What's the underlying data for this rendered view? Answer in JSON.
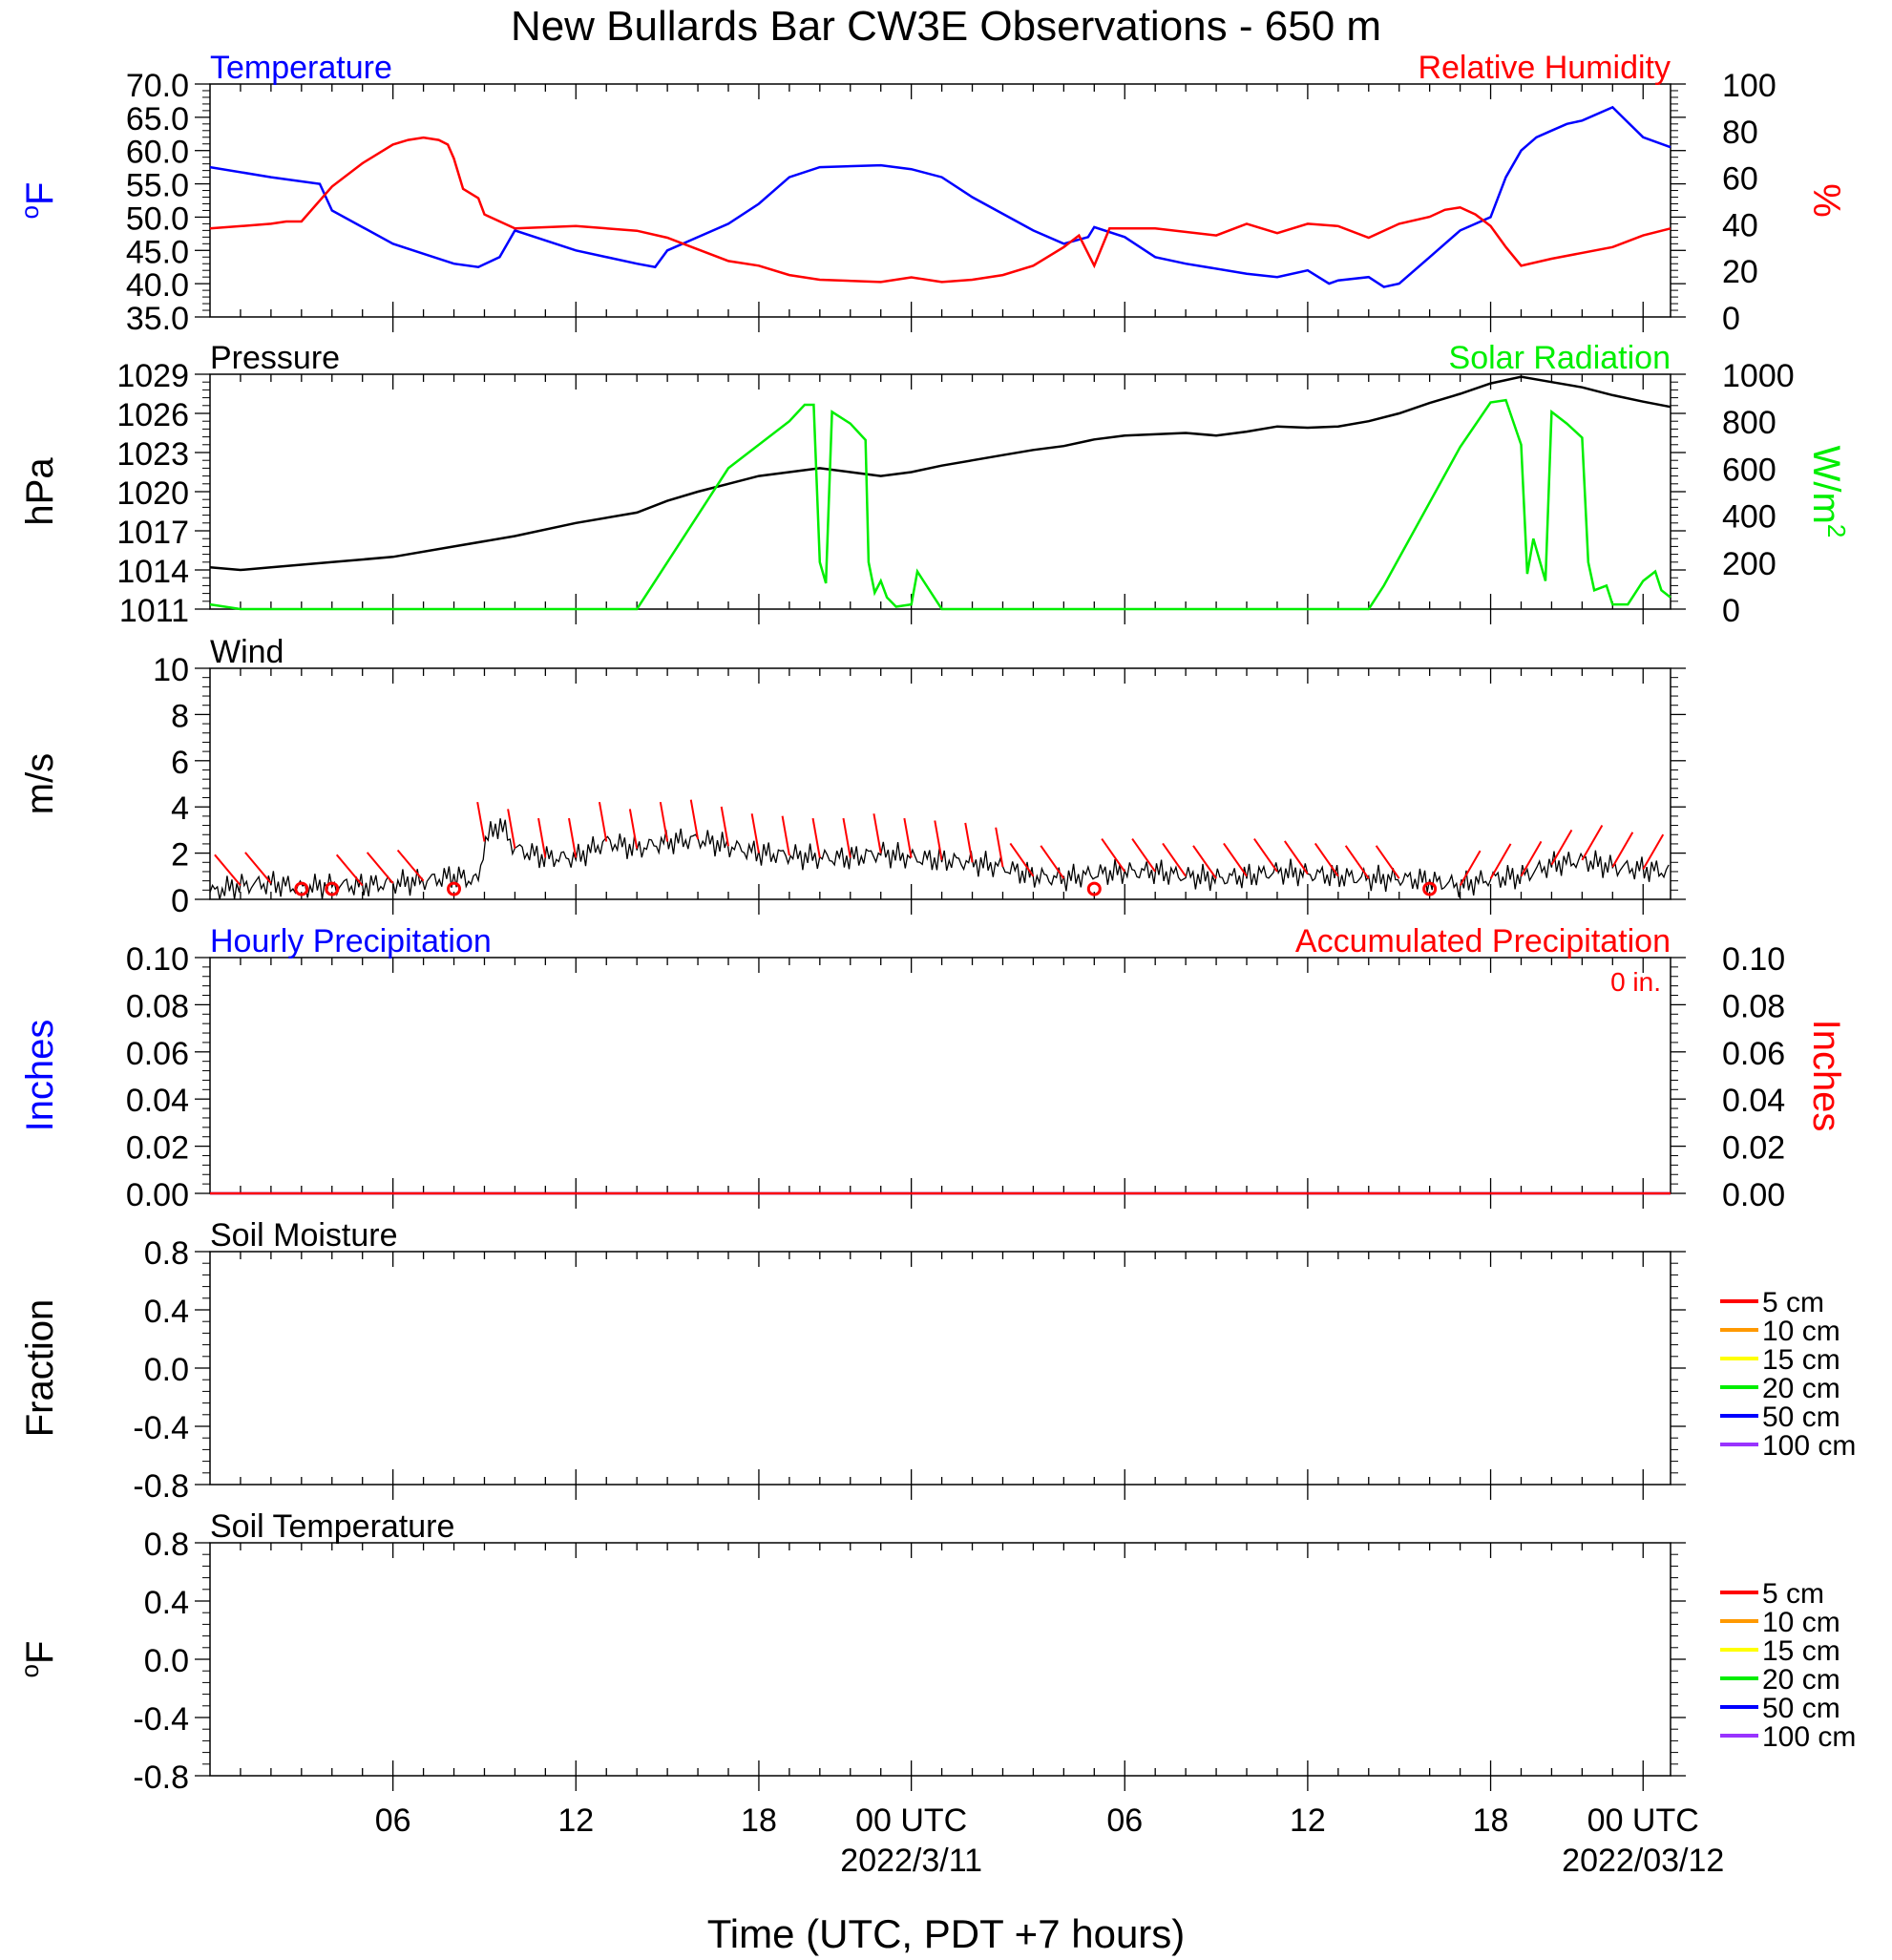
{
  "title": "New Bullards Bar CW3E Observations - 650 m",
  "xlabel": "Time (UTC, PDT +7 hours)",
  "x_ticks": [
    {
      "hours": 6,
      "label": "06",
      "date": ""
    },
    {
      "hours": 12,
      "label": "12",
      "date": ""
    },
    {
      "hours": 18,
      "label": "18",
      "date": ""
    },
    {
      "hours": 23,
      "label": "00 UTC",
      "date": "2022/3/11"
    },
    {
      "hours": 30,
      "label": "06",
      "date": ""
    },
    {
      "hours": 36,
      "label": "12",
      "date": ""
    },
    {
      "hours": 42,
      "label": "18",
      "date": ""
    },
    {
      "hours": 47,
      "label": "00 UTC",
      "date": "2022/03/12"
    }
  ],
  "colors": {
    "blue": "#0000ff",
    "red": "#ff0000",
    "green": "#00ee00",
    "black": "#000000"
  },
  "legend_depths": [
    {
      "label": "5 cm",
      "color": "#ff0000"
    },
    {
      "label": "10 cm",
      "color": "#ff9900"
    },
    {
      "label": "15 cm",
      "color": "#ffff00"
    },
    {
      "label": "20 cm",
      "color": "#00ee00"
    },
    {
      "label": "50 cm",
      "color": "#0000ff"
    },
    {
      "label": "100 cm",
      "color": "#9933ff"
    }
  ],
  "chart_data": [
    {
      "type": "line",
      "left_title": "Temperature",
      "right_title": "Relative Humidity",
      "ylabel_left": "oF",
      "ylabel_right": "%",
      "ylim": [
        35,
        70
      ],
      "ylim_right": [
        0,
        100
      ],
      "yticks": [
        "70.0",
        "65.0",
        "60.0",
        "55.0",
        "50.0",
        "45.0",
        "40.0",
        "35.0"
      ],
      "yticks_right": [
        "100",
        "80",
        "60",
        "40",
        "20",
        "0"
      ],
      "series": [
        {
          "axis": "left",
          "color": "blue",
          "x": [
            0,
            2,
            3.6,
            4,
            6,
            7,
            8,
            8.8,
            9.5,
            10,
            12,
            14,
            14.6,
            15,
            17,
            18,
            19,
            20,
            22,
            23,
            24,
            25,
            27,
            28,
            28.8,
            29,
            30,
            31,
            32,
            34,
            35,
            36,
            36.7,
            37,
            38,
            38.5,
            39,
            40,
            41,
            42,
            42.5,
            43,
            43.5,
            44,
            44.5,
            45,
            46,
            47,
            47.9
          ],
          "y": [
            57.5,
            56,
            55,
            51,
            46,
            44.5,
            43,
            42.5,
            44,
            48,
            45,
            43,
            42.5,
            45,
            49,
            52,
            56,
            57.5,
            57.8,
            57.2,
            56,
            53,
            48,
            46,
            47,
            48.5,
            47,
            44,
            43,
            41.5,
            41,
            42,
            40,
            40.5,
            41,
            39.5,
            40,
            44,
            48,
            50,
            56,
            60,
            62,
            63,
            64,
            64.5,
            66.5,
            62,
            60.5
          ]
        },
        {
          "axis": "right",
          "color": "red",
          "x": [
            0,
            2,
            2.5,
            3,
            4,
            5,
            6,
            6.5,
            7,
            7.5,
            7.8,
            8,
            8.3,
            8.8,
            9,
            10,
            12,
            14,
            15,
            17,
            18,
            19,
            20,
            22,
            23,
            24,
            25,
            26,
            27,
            28,
            28.5,
            29,
            29.5,
            30,
            31,
            33,
            34,
            35,
            36,
            37,
            38,
            39,
            40,
            40.5,
            41,
            41.5,
            42,
            42.5,
            43,
            44,
            46,
            47,
            47.9
          ],
          "y": [
            38,
            40,
            41,
            41,
            56,
            66,
            74,
            76,
            77,
            76,
            74,
            68,
            55,
            51,
            44,
            38,
            39,
            37,
            34,
            24,
            22,
            18,
            16,
            15,
            17,
            15,
            16,
            18,
            22,
            30,
            35,
            22,
            38,
            38,
            38,
            35,
            40,
            36,
            40,
            39,
            34,
            40,
            43,
            46,
            47,
            44,
            39,
            30,
            22,
            25,
            30,
            35,
            38
          ]
        }
      ]
    },
    {
      "type": "line",
      "left_title": "Pressure",
      "right_title": "Solar Radiation",
      "ylabel_left": "hPa",
      "ylabel_right": "W/m2",
      "ylim": [
        1011,
        1029
      ],
      "ylim_right": [
        0,
        1000
      ],
      "yticks": [
        "1029",
        "1026",
        "1023",
        "1020",
        "1017",
        "1014",
        "1011"
      ],
      "yticks_right": [
        "1000",
        "800",
        "600",
        "400",
        "200",
        "0"
      ],
      "series": [
        {
          "axis": "left",
          "color": "black",
          "x": [
            0,
            1,
            2,
            4,
            6,
            8,
            10,
            12,
            14,
            15,
            16,
            17,
            18,
            19,
            20,
            21,
            22,
            23,
            24,
            25,
            26,
            27,
            28,
            29,
            30,
            31,
            32,
            33,
            34,
            35,
            36,
            37,
            38,
            39,
            40,
            41,
            42,
            43,
            44,
            45,
            46,
            47,
            47.9
          ],
          "y": [
            1014.2,
            1014,
            1014.2,
            1014.6,
            1015,
            1015.8,
            1016.6,
            1017.6,
            1018.4,
            1019.3,
            1020,
            1020.6,
            1021.2,
            1021.5,
            1021.8,
            1021.5,
            1021.2,
            1021.5,
            1022,
            1022.4,
            1022.8,
            1023.2,
            1023.5,
            1024,
            1024.3,
            1024.4,
            1024.5,
            1024.3,
            1024.6,
            1025,
            1024.9,
            1025,
            1025.4,
            1026,
            1026.8,
            1027.5,
            1028.3,
            1028.8,
            1028.4,
            1028,
            1027.4,
            1026.9,
            1026.5
          ]
        },
        {
          "axis": "right",
          "color": "green",
          "x": [
            0,
            1,
            14,
            14.5,
            17,
            19,
            19.5,
            19.8,
            20,
            20.2,
            20.4,
            21,
            21.5,
            21.6,
            21.8,
            22,
            22.2,
            22.5,
            23,
            23.2,
            23.4,
            24,
            25,
            38,
            38.5,
            41,
            42,
            42.5,
            43,
            43.2,
            43.4,
            43.8,
            44,
            44.5,
            45,
            45.2,
            45.4,
            45.8,
            46,
            46.5,
            47,
            47.4,
            47.6,
            47.9
          ],
          "y": [
            20,
            0,
            0,
            100,
            600,
            800,
            870,
            870,
            200,
            110,
            840,
            790,
            720,
            200,
            70,
            120,
            50,
            10,
            20,
            160,
            120,
            0,
            0,
            0,
            100,
            690,
            880,
            890,
            700,
            150,
            300,
            120,
            840,
            790,
            730,
            200,
            80,
            100,
            20,
            20,
            120,
            160,
            80,
            50
          ]
        }
      ]
    },
    {
      "type": "line",
      "left_title": "Wind",
      "ylabel_left": "m/s",
      "ylim": [
        0,
        10
      ],
      "yticks": [
        "10",
        "8",
        "6",
        "4",
        "2",
        "0"
      ],
      "series": [
        {
          "name": "",
          "axis": "left",
          "color": "black",
          "x": [
            0,
            1,
            2,
            3,
            4,
            5,
            6,
            7,
            8,
            8.8,
            9,
            9.5,
            10,
            11,
            12,
            13,
            14,
            15,
            16,
            17,
            18,
            19,
            20,
            21,
            22,
            23,
            24,
            25,
            26,
            27,
            28,
            29,
            30,
            31,
            32,
            33,
            34,
            35,
            36,
            37,
            38,
            39,
            40,
            41,
            42,
            43,
            44,
            45,
            46,
            47,
            47.9
          ],
          "y": [
            0.3,
            0.6,
            0.7,
            0.5,
            0.6,
            0.6,
            0.7,
            0.8,
            1.0,
            0.8,
            2.5,
            3.3,
            2.2,
            1.8,
            1.8,
            2.5,
            2.2,
            2.5,
            2.6,
            2.3,
            2.0,
            1.9,
            1.8,
            1.8,
            2.0,
            1.8,
            1.7,
            1.6,
            1.4,
            1.0,
            0.9,
            1.1,
            1.2,
            1.2,
            1.0,
            0.9,
            1.0,
            1.2,
            1.1,
            1.0,
            0.9,
            0.9,
            0.8,
            0.6,
            0.9,
            1.0,
            1.5,
            1.7,
            1.4,
            1.3,
            1.2
          ]
        }
      ],
      "calm_hours": [
        3,
        4,
        8,
        29,
        40
      ]
    },
    {
      "type": "line",
      "left_title": "Hourly Precipitation",
      "right_title": "Accumulated Precipitation",
      "ylabel_left": "Inches",
      "ylabel_right": "Inches",
      "ylim": [
        0,
        0.1
      ],
      "ylim_right": [
        0,
        0.1
      ],
      "yticks": [
        "0.10",
        "0.08",
        "0.06",
        "0.04",
        "0.02",
        "0.00"
      ],
      "yticks_right": [
        "0.10",
        "0.08",
        "0.06",
        "0.04",
        "0.02",
        "0.00"
      ],
      "accum_label": "0 in.",
      "series": [
        {
          "axis": "left",
          "color": "blue",
          "x": [
            0,
            47.9
          ],
          "y": [
            0,
            0
          ]
        },
        {
          "axis": "right",
          "color": "red",
          "x": [
            0,
            47.9
          ],
          "y": [
            0,
            0
          ]
        }
      ]
    },
    {
      "type": "line",
      "left_title": "Soil Moisture",
      "ylabel_left": "Fraction",
      "ylim": [
        -1,
        1
      ],
      "yticks": [
        "0.8",
        "0.4",
        "0.0",
        "-0.4",
        "-0.8"
      ],
      "series": []
    },
    {
      "type": "line",
      "left_title": "Soil Temperature",
      "ylabel_left": "oF",
      "ylim": [
        -1,
        1
      ],
      "yticks": [
        "0.8",
        "0.4",
        "0.0",
        "-0.4",
        "-0.8"
      ],
      "series": []
    }
  ]
}
